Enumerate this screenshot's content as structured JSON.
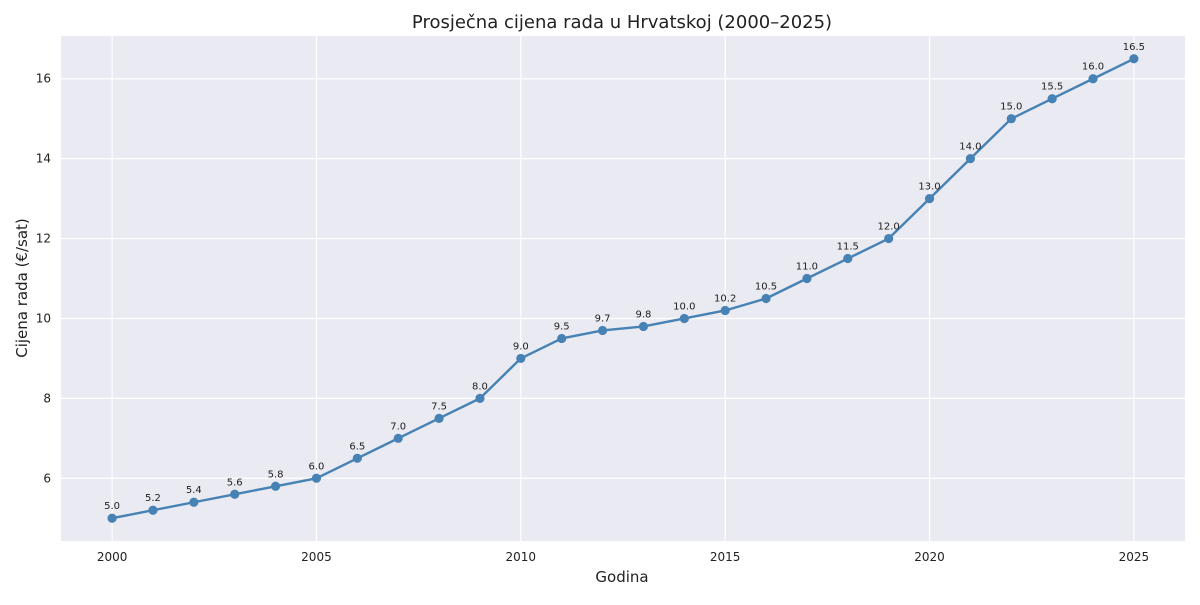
{
  "chart_data": {
    "type": "line",
    "title": "Prosječna cijena rada u Hrvatskoj (2000–2025)",
    "xlabel": "Godina",
    "ylabel": "Cijena rada (€/sat)",
    "x": [
      2000,
      2001,
      2002,
      2003,
      2004,
      2005,
      2006,
      2007,
      2008,
      2009,
      2010,
      2011,
      2012,
      2013,
      2014,
      2015,
      2016,
      2017,
      2018,
      2019,
      2020,
      2021,
      2022,
      2023,
      2024,
      2025
    ],
    "series": [
      {
        "values": [
          5.0,
          5.2,
          5.4,
          5.6,
          5.8,
          6.0,
          6.5,
          7.0,
          7.5,
          8.0,
          9.0,
          9.5,
          9.7,
          9.8,
          10.0,
          10.2,
          10.5,
          11.0,
          11.5,
          12.0,
          13.0,
          14.0,
          15.0,
          15.5,
          16.0,
          16.5
        ],
        "color": "#4682b4",
        "marker": "circle"
      }
    ],
    "data_labels": [
      "5.0",
      "5.2",
      "5.4",
      "5.6",
      "5.8",
      "6.0",
      "6.5",
      "7.0",
      "7.5",
      "8.0",
      "9.0",
      "9.5",
      "9.7",
      "9.8",
      "10.0",
      "10.2",
      "10.5",
      "11.0",
      "11.5",
      "12.0",
      "13.0",
      "14.0",
      "15.0",
      "15.5",
      "16.0",
      "16.5"
    ],
    "xlim": [
      1998.75,
      2026.25
    ],
    "ylim": [
      4.43,
      17.07
    ],
    "xticks": [
      2000,
      2005,
      2010,
      2015,
      2020,
      2025
    ],
    "xtick_labels": [
      "2000",
      "2005",
      "2010",
      "2015",
      "2020",
      "2025"
    ],
    "yticks": [
      6,
      8,
      10,
      12,
      14,
      16
    ],
    "ytick_labels": [
      "6",
      "8",
      "10",
      "12",
      "14",
      "16"
    ],
    "grid": true,
    "background_color": "#eaeaf2",
    "grid_color": "#ffffff",
    "legend": "none"
  }
}
